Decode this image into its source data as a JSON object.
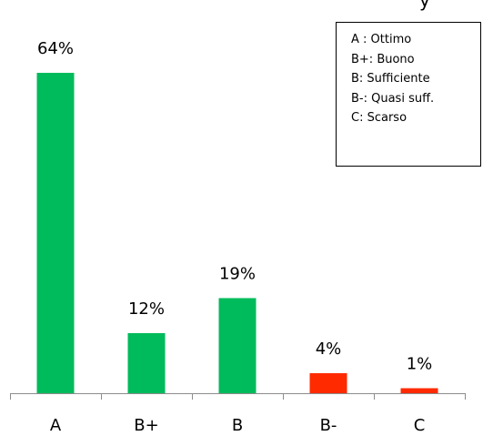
{
  "chart_data": {
    "type": "bar",
    "categories": [
      "A",
      "B+",
      "B",
      "B-",
      "C"
    ],
    "values": [
      64,
      12,
      19,
      4,
      1
    ],
    "value_labels": [
      "64%",
      "12%",
      "19%",
      "4%",
      "1%"
    ],
    "bar_colors": [
      "#00bb5c",
      "#00bb5c",
      "#00bb5c",
      "#ff2a00",
      "#ff2a00"
    ],
    "ylim": [
      0,
      64
    ],
    "grid": false,
    "legend_placement": "top-right",
    "legend_entries": [
      "A : Ottimo",
      "B+: Buono",
      "B: Sufficiente",
      "B-: Quasi suff.",
      "C: Scarso"
    ]
  },
  "partial_title_glyph": "y"
}
